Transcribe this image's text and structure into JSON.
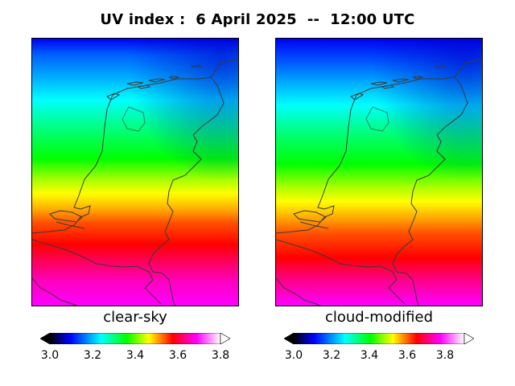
{
  "title": "UV index :  6 April 2025  --  12:00 UTC",
  "colors": {
    "colormap": [
      "#000000",
      "#0000ff",
      "#00ffff",
      "#00ff00",
      "#ffff00",
      "#ff0000",
      "#ff00ff",
      "#ffffff"
    ],
    "coastline": "#3a3a3a"
  },
  "panels": [
    {
      "label": "clear-sky",
      "colorbar": {
        "vmin": 3.0,
        "vmax": 3.8,
        "ticks": [
          "3.0",
          "3.2",
          "3.4",
          "3.6",
          "3.8"
        ],
        "extend": "both"
      }
    },
    {
      "label": "cloud-modified",
      "colorbar": {
        "vmin": 3.0,
        "vmax": 3.9,
        "ticks": [
          "3.0",
          "3.2",
          "3.4",
          "3.6",
          "3.8"
        ],
        "extend": "both"
      }
    }
  ]
}
